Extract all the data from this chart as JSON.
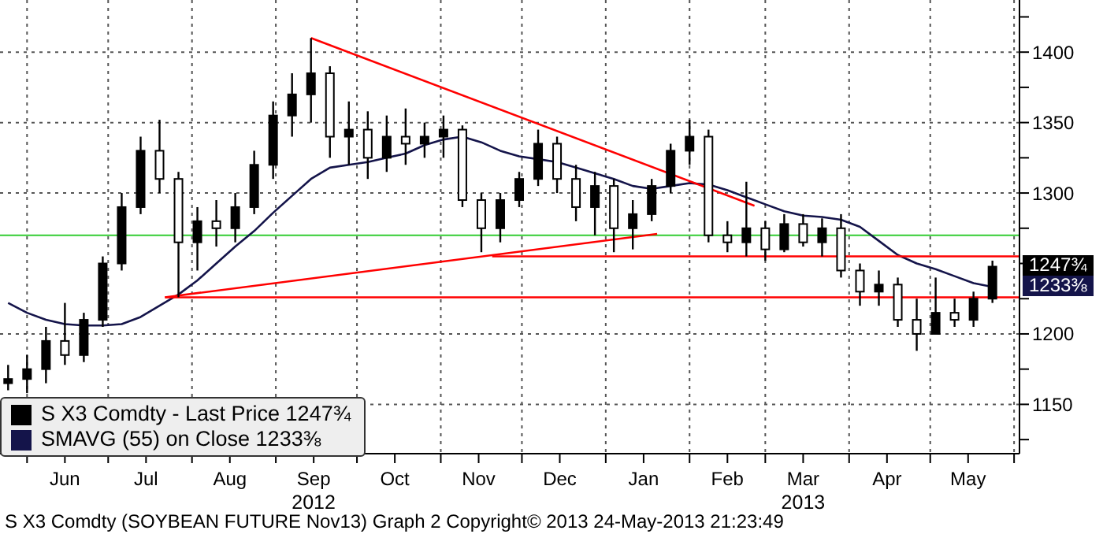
{
  "chart_data": {
    "type": "candlestick",
    "x": [
      "2012-05-25",
      "2012-06-01",
      "2012-06-08",
      "2012-06-15",
      "2012-06-22",
      "2012-06-29",
      "2012-07-06",
      "2012-07-13",
      "2012-07-20",
      "2012-07-27",
      "2012-08-03",
      "2012-08-10",
      "2012-08-17",
      "2012-08-24",
      "2012-08-31",
      "2012-09-07",
      "2012-09-14",
      "2012-09-21",
      "2012-09-28",
      "2012-10-05",
      "2012-10-12",
      "2012-10-19",
      "2012-10-26",
      "2012-11-02",
      "2012-11-09",
      "2012-11-16",
      "2012-11-23",
      "2012-11-30",
      "2012-12-07",
      "2012-12-14",
      "2012-12-21",
      "2012-12-28",
      "2013-01-04",
      "2013-01-11",
      "2013-01-18",
      "2013-01-25",
      "2013-02-01",
      "2013-02-08",
      "2013-02-15",
      "2013-02-22",
      "2013-03-01",
      "2013-03-08",
      "2013-03-15",
      "2013-03-22",
      "2013-03-29",
      "2013-04-05",
      "2013-04-12",
      "2013-04-19",
      "2013-04-26",
      "2013-05-03",
      "2013-05-10",
      "2013-05-17",
      "2013-05-24"
    ],
    "series": [
      {
        "name": "S X3 Comdty - Last Price 1247¾",
        "color": "#000000",
        "ohlc": [
          [
            1165,
            1178,
            1160,
            1168
          ],
          [
            1168,
            1185,
            1158,
            1175
          ],
          [
            1175,
            1205,
            1165,
            1195
          ],
          [
            1195,
            1222,
            1178,
            1185
          ],
          [
            1185,
            1215,
            1180,
            1210
          ],
          [
            1210,
            1255,
            1205,
            1250
          ],
          [
            1250,
            1300,
            1245,
            1290
          ],
          [
            1290,
            1340,
            1285,
            1330
          ],
          [
            1330,
            1352,
            1300,
            1310
          ],
          [
            1310,
            1315,
            1226,
            1265
          ],
          [
            1265,
            1290,
            1245,
            1280
          ],
          [
            1280,
            1295,
            1262,
            1275
          ],
          [
            1275,
            1300,
            1265,
            1290
          ],
          [
            1290,
            1330,
            1285,
            1320
          ],
          [
            1320,
            1365,
            1310,
            1355
          ],
          [
            1355,
            1385,
            1340,
            1370
          ],
          [
            1370,
            1410,
            1350,
            1385
          ],
          [
            1385,
            1390,
            1325,
            1340
          ],
          [
            1340,
            1365,
            1320,
            1345
          ],
          [
            1345,
            1358,
            1310,
            1325
          ],
          [
            1325,
            1355,
            1315,
            1340
          ],
          [
            1340,
            1360,
            1320,
            1335
          ],
          [
            1335,
            1350,
            1325,
            1340
          ],
          [
            1340,
            1355,
            1325,
            1345
          ],
          [
            1345,
            1348,
            1290,
            1295
          ],
          [
            1295,
            1300,
            1258,
            1275
          ],
          [
            1275,
            1300,
            1265,
            1295
          ],
          [
            1295,
            1315,
            1290,
            1310
          ],
          [
            1310,
            1345,
            1305,
            1335
          ],
          [
            1335,
            1340,
            1300,
            1310
          ],
          [
            1310,
            1320,
            1280,
            1290
          ],
          [
            1290,
            1315,
            1270,
            1305
          ],
          [
            1305,
            1310,
            1258,
            1275
          ],
          [
            1275,
            1295,
            1260,
            1285
          ],
          [
            1285,
            1310,
            1280,
            1305
          ],
          [
            1305,
            1335,
            1300,
            1330
          ],
          [
            1330,
            1352,
            1320,
            1340
          ],
          [
            1340,
            1345,
            1265,
            1270
          ],
          [
            1270,
            1280,
            1258,
            1265
          ],
          [
            1265,
            1308,
            1255,
            1275
          ],
          [
            1275,
            1280,
            1252,
            1260
          ],
          [
            1260,
            1285,
            1258,
            1278
          ],
          [
            1278,
            1285,
            1262,
            1265
          ],
          [
            1265,
            1282,
            1255,
            1275
          ],
          [
            1275,
            1285,
            1240,
            1245
          ],
          [
            1245,
            1250,
            1220,
            1230
          ],
          [
            1230,
            1245,
            1220,
            1235
          ],
          [
            1235,
            1240,
            1205,
            1210
          ],
          [
            1210,
            1225,
            1188,
            1200
          ],
          [
            1200,
            1240,
            1200,
            1215
          ],
          [
            1215,
            1225,
            1205,
            1210
          ],
          [
            1210,
            1230,
            1205,
            1225
          ],
          [
            1225,
            1252,
            1222,
            1247.75
          ]
        ]
      },
      {
        "name": "SMAVG (55) on Close 1233⅜",
        "type": "line",
        "color": "#14144a",
        "values": [
          1222,
          1215,
          1210,
          1207,
          1206,
          1206,
          1207,
          1212,
          1220,
          1228,
          1238,
          1250,
          1262,
          1273,
          1286,
          1298,
          1310,
          1318,
          1320,
          1322,
          1325,
          1328,
          1334,
          1338,
          1340,
          1336,
          1330,
          1326,
          1324,
          1322,
          1318,
          1314,
          1310,
          1305,
          1303,
          1305,
          1307,
          1306,
          1302,
          1297,
          1292,
          1287,
          1284,
          1283,
          1281,
          1276,
          1266,
          1256,
          1250,
          1246,
          1241,
          1236,
          1233.4
        ]
      },
      {
        "type": "line",
        "color": "#ff0000",
        "x": [
          "2012-09-14",
          "2013-02-25"
        ],
        "values": [
          1410,
          1291
        ]
      },
      {
        "type": "line",
        "color": "#ff0000",
        "x": [
          "2012-07-22",
          "2013-01-20"
        ],
        "values": [
          1226,
          1271
        ]
      },
      {
        "type": "line",
        "color": "#ff0000",
        "x": [
          "2012-07-22",
          "2013-06-03"
        ],
        "values": [
          1226,
          1226
        ]
      },
      {
        "type": "line",
        "color": "#ff0000",
        "x": [
          "2012-11-20",
          "2013-06-03"
        ],
        "values": [
          1255,
          1255
        ]
      }
    ],
    "ref_lines": [
      {
        "axis": "y",
        "value": 1270,
        "color": "#33cc33"
      }
    ],
    "xlim": [
      "2012-05-22",
      "2013-06-03"
    ],
    "xticks": [
      {
        "value": "2012-06-01",
        "label": null
      },
      {
        "value": "2012-06-15",
        "label": "Jun"
      },
      {
        "value": "2012-07-01",
        "label": null
      },
      {
        "value": "2012-07-15",
        "label": "Jul"
      },
      {
        "value": "2012-08-01",
        "label": null
      },
      {
        "value": "2012-08-15",
        "label": "Aug"
      },
      {
        "value": "2012-09-01",
        "label": null
      },
      {
        "value": "2012-09-15",
        "label": "Sep\n2012"
      },
      {
        "value": "2012-10-01",
        "label": null
      },
      {
        "value": "2012-10-15",
        "label": "Oct"
      },
      {
        "value": "2012-11-01",
        "label": null
      },
      {
        "value": "2012-11-15",
        "label": "Nov"
      },
      {
        "value": "2012-12-01",
        "label": null
      },
      {
        "value": "2012-12-15",
        "label": "Dec"
      },
      {
        "value": "2013-01-01",
        "label": null
      },
      {
        "value": "2013-01-15",
        "label": "Jan"
      },
      {
        "value": "2013-02-01",
        "label": null
      },
      {
        "value": "2013-02-15",
        "label": "Feb"
      },
      {
        "value": "2013-03-01",
        "label": null
      },
      {
        "value": "2013-03-15",
        "label": "Mar\n2013"
      },
      {
        "value": "2013-04-01",
        "label": null
      },
      {
        "value": "2013-04-15",
        "label": "Apr"
      },
      {
        "value": "2013-05-01",
        "label": null
      },
      {
        "value": "2013-05-15",
        "label": "May"
      },
      {
        "value": "2013-06-01",
        "label": null
      }
    ],
    "ylim": [
      1115,
      1437
    ],
    "yticks": [
      {
        "value": 1125,
        "label": null
      },
      1150,
      {
        "value": 1175,
        "label": null
      },
      1200,
      {
        "value": 1225,
        "label": null
      },
      {
        "value": 1250,
        "label": null
      },
      {
        "value": 1275,
        "label": null
      },
      1300,
      {
        "value": 1325,
        "label": null
      },
      1350,
      {
        "value": 1375,
        "label": null
      },
      1400,
      {
        "value": 1425,
        "label": null
      }
    ],
    "grid": true,
    "legend": "bottom left",
    "annotations": [
      "1247¾",
      "1233⅜",
      "S X3 Comdty (SOYBEAN FUTURE Nov13) Graph 2 Copyright© 2013 24-May-2013 21:23:49"
    ]
  }
}
